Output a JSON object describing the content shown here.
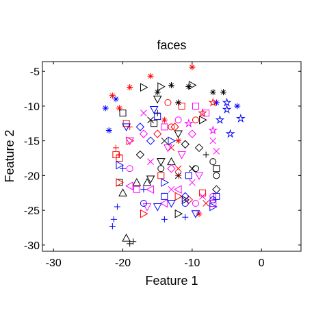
{
  "chart_data": {
    "type": "scatter",
    "title": "faces",
    "x_label": "Feature 1",
    "y_label": "Feature 2",
    "xlim": [
      -31.6,
      5.7
    ],
    "ylim": [
      -30.9,
      -3.6
    ],
    "xticks": [
      -30,
      -20,
      -10,
      0
    ],
    "yticks": [
      -5,
      -10,
      -15,
      -20,
      -25,
      -30
    ],
    "series": [
      {
        "marker": "asterisk",
        "color": "#ff0000",
        "x": [
          -16,
          -10,
          -19,
          -21.5,
          -20.5,
          -14,
          -12,
          -9
        ],
        "values": [
          -5.7,
          -4.4,
          -7.3,
          -8.5,
          -10.3,
          -12,
          -15,
          -25.5
        ]
      },
      {
        "marker": "asterisk",
        "color": "#0000ff",
        "x": [
          -22.5,
          -22,
          -21,
          -3.5,
          -6.5
        ],
        "values": [
          -10.3,
          -13.5,
          -9,
          -10,
          -9.5
        ]
      },
      {
        "marker": "asterisk",
        "color": "#000000",
        "x": [
          -13,
          -10.5,
          -7,
          -5.5,
          -15,
          -12
        ],
        "values": [
          -7,
          -7.2,
          -8,
          -8,
          -8,
          -9.5
        ]
      },
      {
        "marker": "plus",
        "color": "#0000ff",
        "x": [
          -21.5,
          -21.3,
          -20.8,
          -14,
          -11,
          -17,
          -20
        ],
        "values": [
          -27.3,
          -26.3,
          -24.5,
          -26.3,
          -26,
          -22,
          -19
        ]
      },
      {
        "marker": "plus",
        "color": "#000000",
        "x": [
          -19,
          -18.5,
          -15,
          -8
        ],
        "values": [
          -29.8,
          -29.5,
          -11,
          -17
        ]
      },
      {
        "marker": "plus",
        "color": "#ff0000",
        "x": [
          -21,
          -20.5,
          -19,
          -12
        ],
        "values": [
          -16,
          -17,
          -13,
          -20
        ]
      },
      {
        "marker": "cross",
        "color": "#ff00ff",
        "x": [
          -16,
          -7,
          -6.5,
          -10,
          -8.5,
          -13,
          -17
        ],
        "values": [
          -18,
          -15,
          -16.5,
          -21,
          -23,
          -22,
          -11
        ]
      },
      {
        "marker": "cross",
        "color": "#000000",
        "x": [
          -12,
          -14,
          -10,
          -16
        ],
        "values": [
          -20,
          -15,
          -19,
          -12
        ]
      },
      {
        "marker": "cross",
        "color": "#ff0000",
        "x": [
          -12,
          -13,
          -8
        ],
        "values": [
          -19,
          -16,
          -24
        ]
      },
      {
        "marker": "triangle-up",
        "color": "#000000",
        "x": [
          -19.5,
          -20,
          -18,
          -13,
          -16.5
        ],
        "values": [
          -29,
          -22.5,
          -21,
          -18,
          -21
        ]
      },
      {
        "marker": "triangle-right",
        "color": "#000000",
        "x": [
          -17,
          -14.5,
          -10,
          -8.5,
          -11,
          -12
        ],
        "values": [
          -7.3,
          -7.2,
          -7,
          -12,
          -23.5,
          -25.5
        ]
      },
      {
        "marker": "triangle-down",
        "color": "#000000",
        "x": [
          -15,
          -16,
          -12,
          -14.5
        ],
        "values": [
          -9,
          -20.5,
          -14,
          -18
        ]
      },
      {
        "marker": "square",
        "color": "#000000",
        "x": [
          -20,
          -15.5,
          -6.5,
          -20.5
        ],
        "values": [
          -11,
          -12.5,
          -19,
          -21
        ]
      },
      {
        "marker": "circle",
        "color": "#000000",
        "x": [
          -14.5,
          -9.5,
          -7,
          -6.5
        ],
        "values": [
          -19,
          -19,
          -18,
          -20
        ]
      },
      {
        "marker": "diamond",
        "color": "#000000",
        "x": [
          -6.5,
          -11,
          -9,
          -17.5
        ],
        "values": [
          -22,
          -15.5,
          -16,
          -17
        ]
      },
      {
        "marker": "square",
        "color": "#ff0000",
        "x": [
          -19.5,
          -20.5,
          -21,
          -11.5,
          -14.5,
          -8.5
        ],
        "values": [
          -12.5,
          -17.5,
          -17,
          -10,
          -20,
          -22.5
        ]
      },
      {
        "marker": "triangle-right",
        "color": "#ff0000",
        "x": [
          -20.5,
          -17,
          -19,
          -12
        ],
        "values": [
          -21,
          -25.5,
          -15,
          -23
        ]
      },
      {
        "marker": "diamond",
        "color": "#ff0000",
        "x": [
          -15,
          -10.5,
          -12.5
        ],
        "values": [
          -14,
          -23.5,
          -13
        ]
      },
      {
        "marker": "circle",
        "color": "#ff0000",
        "x": [
          -13,
          -9.5,
          -13.5
        ],
        "values": [
          -13,
          -12,
          -9.5
        ]
      },
      {
        "marker": "star",
        "color": "#ff0000",
        "x": [
          -7,
          -8.5
        ],
        "values": [
          -9.5,
          -11
        ]
      },
      {
        "marker": "square",
        "color": "#ff00ff",
        "x": [
          -14,
          -9.5,
          -8,
          -7,
          -18
        ],
        "values": [
          -13,
          -10,
          -11,
          -24,
          -22
        ]
      },
      {
        "marker": "triangle-down",
        "color": "#ff00ff",
        "x": [
          -19,
          -11.5,
          -9,
          -16.5,
          -13.5
        ],
        "values": [
          -15,
          -17,
          -20,
          -24.5,
          -16
        ]
      },
      {
        "marker": "triangle-left",
        "color": "#ff00ff",
        "x": [
          -16,
          -19,
          -12,
          -14
        ],
        "values": [
          -22,
          -21.5,
          -22,
          -24
        ]
      },
      {
        "marker": "diamond",
        "color": "#ff00ff",
        "x": [
          -17,
          -10,
          -13
        ],
        "values": [
          -14,
          -14,
          -19
        ]
      },
      {
        "marker": "circle",
        "color": "#ff00ff",
        "x": [
          -12,
          -9.5,
          -7,
          -19
        ],
        "values": [
          -12,
          -24,
          -23,
          -19
        ]
      },
      {
        "marker": "star",
        "color": "#ff00ff",
        "x": [
          -7,
          -10.5
        ],
        "values": [
          -13.5,
          -12.5
        ]
      },
      {
        "marker": "star",
        "color": "#0000ff",
        "x": [
          -3,
          -5,
          -5,
          -6,
          -4.5
        ],
        "values": [
          -11.8,
          -9.5,
          -10.5,
          -12,
          -14
        ]
      },
      {
        "marker": "triangle-down",
        "color": "#0000ff",
        "x": [
          -15,
          -13,
          -9.5,
          -15.5,
          -19.5
        ],
        "values": [
          -24.5,
          -24,
          -25.5,
          -10.5,
          -13
        ]
      },
      {
        "marker": "square",
        "color": "#0000ff",
        "x": [
          -14,
          -10.5,
          -6.5,
          -15
        ],
        "values": [
          -23,
          -20,
          -23,
          -11.5
        ]
      },
      {
        "marker": "triangle-right",
        "color": "#0000ff",
        "x": [
          -13,
          -20.5,
          -14,
          -7
        ],
        "values": [
          -15,
          -18.5,
          -21,
          -24.5
        ]
      },
      {
        "marker": "diamond",
        "color": "#0000ff",
        "x": [
          -16,
          -17.5,
          -11
        ],
        "values": [
          -15,
          -13,
          -23
        ]
      },
      {
        "marker": "circle",
        "color": "#0000ff",
        "x": [
          -17,
          -11,
          -7
        ],
        "values": [
          -24,
          -24,
          -23.5
        ]
      }
    ]
  }
}
